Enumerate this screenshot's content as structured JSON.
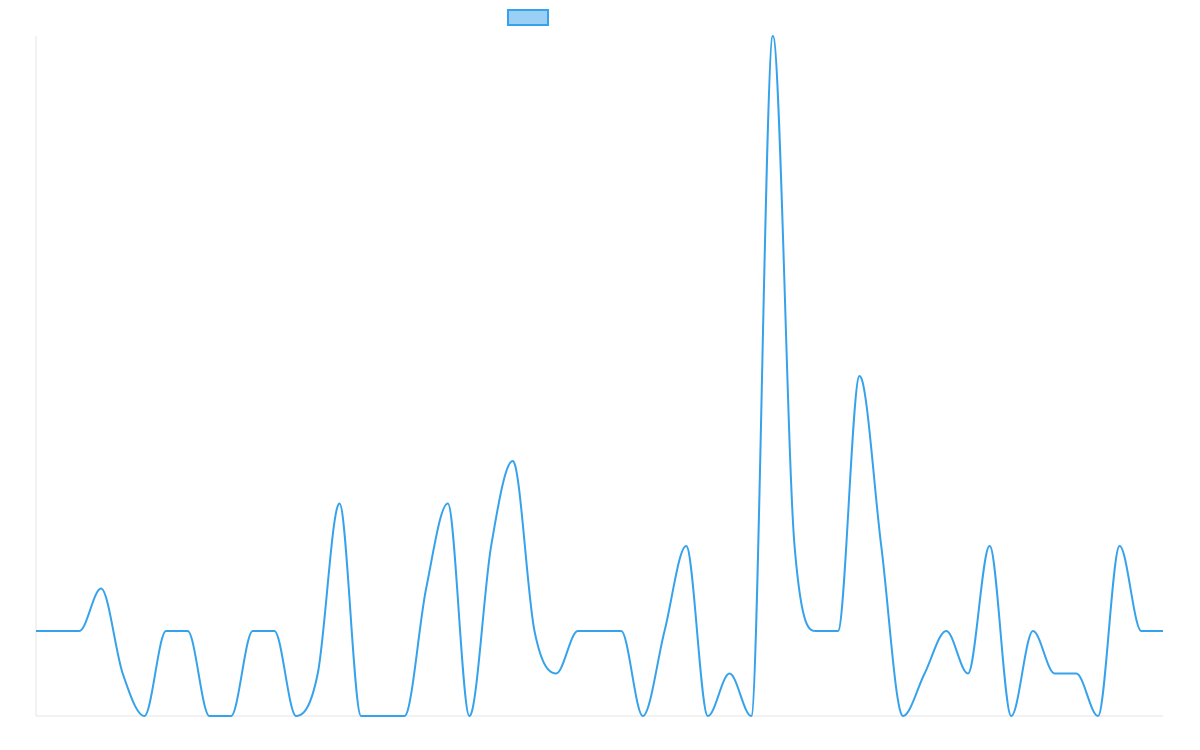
{
  "chart_data": {
    "type": "line",
    "title": "",
    "xlabel": "",
    "ylabel": "",
    "grid": false,
    "legend": "top-center",
    "ylim": [
      0,
      16
    ],
    "x": [
      0,
      1,
      2,
      3,
      4,
      5,
      6,
      7,
      8,
      9,
      10,
      11,
      12,
      13,
      14,
      15,
      16,
      17,
      18,
      19,
      20,
      21,
      22,
      23,
      24,
      25,
      26,
      27,
      28,
      29,
      30,
      31,
      32,
      33,
      34,
      35,
      36,
      37,
      38,
      39,
      40,
      41,
      42,
      43,
      44,
      45,
      46,
      47,
      48,
      49,
      50,
      51,
      52
    ],
    "series": [
      {
        "name": "",
        "color": "#36a2eb",
        "fill": "#9ad0f5",
        "values": [
          2,
          2,
          2,
          3,
          1,
          0,
          2,
          2,
          0,
          0,
          2,
          2,
          0,
          1,
          5,
          0,
          0,
          0,
          3,
          5,
          0,
          4,
          6,
          2,
          1,
          2,
          2,
          2,
          0,
          2,
          4,
          0,
          1,
          0,
          16,
          4,
          2,
          2,
          8,
          4,
          0,
          1,
          2,
          1,
          4,
          0,
          2,
          1,
          1,
          0,
          4,
          2,
          2
        ]
      }
    ]
  }
}
